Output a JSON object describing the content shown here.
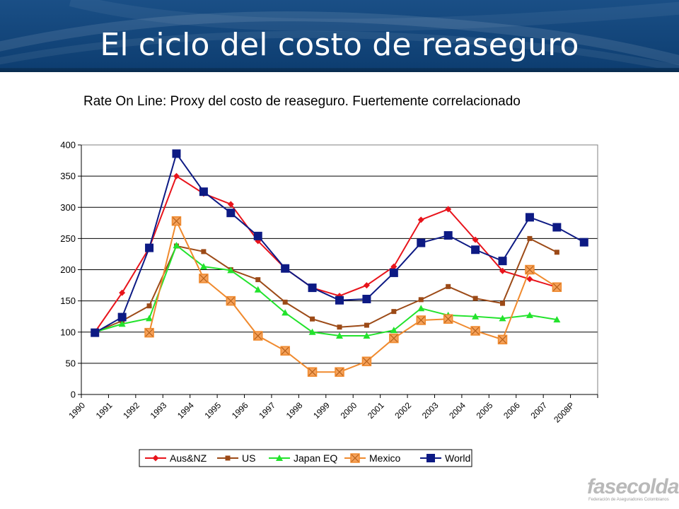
{
  "slide": {
    "title": "El ciclo del costo de reaseguro",
    "subtitle": "Rate On Line: Proxy del costo de reaseguro. Fuertemente correlacionado"
  },
  "logo": {
    "word": "fasecolda",
    "tagline": "Federación de Aseguradores Colombianos"
  },
  "chart_data": {
    "type": "line",
    "categories": [
      "1990",
      "1991",
      "1992",
      "1993",
      "1994",
      "1995",
      "1996",
      "1997",
      "1998",
      "1999",
      "2000",
      "2001",
      "2002",
      "2003",
      "2004",
      "2005",
      "2006",
      "2007",
      "2008P"
    ],
    "ylim": [
      0,
      400
    ],
    "yticks": [
      0,
      50,
      100,
      150,
      200,
      250,
      300,
      350,
      400
    ],
    "grid": true,
    "legend_position": "bottom",
    "series": [
      {
        "name": "Aus&NZ",
        "color": "#e8131b",
        "marker": "diamond",
        "values": [
          100,
          163,
          235,
          350,
          322,
          305,
          246,
          202,
          171,
          158,
          175,
          205,
          280,
          297,
          248,
          198,
          185,
          172,
          null
        ]
      },
      {
        "name": "US",
        "color": "#9c4a17",
        "marker": "square-small",
        "values": [
          100,
          118,
          142,
          238,
          229,
          200,
          184,
          148,
          121,
          108,
          111,
          133,
          152,
          173,
          154,
          146,
          250,
          228,
          null
        ]
      },
      {
        "name": "Japan EQ",
        "color": "#22e32c",
        "marker": "triangle",
        "values": [
          100,
          113,
          122,
          239,
          205,
          199,
          168,
          131,
          100,
          94,
          94,
          103,
          138,
          127,
          125,
          122,
          127,
          120,
          null
        ]
      },
      {
        "name": "Mexico",
        "color": "#f08a2e",
        "marker": "square-x",
        "values": [
          null,
          null,
          99,
          278,
          186,
          150,
          94,
          70,
          36,
          36,
          53,
          90,
          119,
          121,
          102,
          88,
          200,
          172,
          null
        ]
      },
      {
        "name": "World",
        "color": "#0d1a84",
        "marker": "square",
        "values": [
          99,
          124,
          235,
          386,
          325,
          291,
          254,
          202,
          171,
          151,
          153,
          195,
          243,
          255,
          232,
          214,
          284,
          268,
          244
        ]
      }
    ]
  }
}
